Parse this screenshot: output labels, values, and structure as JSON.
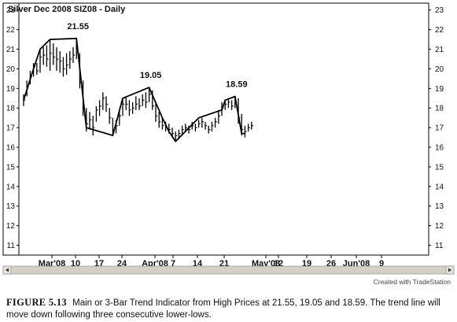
{
  "chart_data": {
    "type": "bar",
    "title": "Silver Dec 2008 SIZ08 - Daily",
    "ylim": [
      10,
      23
    ],
    "y_ticks": [
      11,
      12,
      13,
      14,
      15,
      16,
      17,
      18,
      19,
      20,
      21,
      22,
      23
    ],
    "x_tick_labels": [
      "Mar'08",
      "10",
      "17",
      "24",
      "Apr'08",
      "7",
      "14",
      "21",
      "May'08",
      "12",
      "19",
      "26",
      "Jun'08",
      "9"
    ],
    "grid": false,
    "ohlc": [
      {
        "high": 18.7,
        "low": 18.1,
        "close": 18.4
      },
      {
        "high": 19.4,
        "low": 18.6,
        "close": 19.1
      },
      {
        "high": 19.9,
        "low": 19.2,
        "close": 19.6
      },
      {
        "high": 20.3,
        "low": 19.6,
        "close": 20.1
      },
      {
        "high": 20.3,
        "low": 19.7,
        "close": 19.9
      },
      {
        "high": 21.0,
        "low": 19.8,
        "close": 20.6
      },
      {
        "high": 21.1,
        "low": 20.2,
        "close": 20.7
      },
      {
        "high": 21.2,
        "low": 20.1,
        "close": 20.5
      },
      {
        "high": 21.5,
        "low": 19.9,
        "close": 20.8
      },
      {
        "high": 21.3,
        "low": 20.2,
        "close": 20.6
      },
      {
        "high": 21.1,
        "low": 19.9,
        "close": 20.5
      },
      {
        "high": 20.9,
        "low": 19.8,
        "close": 20.4
      },
      {
        "high": 20.6,
        "low": 19.6,
        "close": 20.0
      },
      {
        "high": 20.8,
        "low": 19.7,
        "close": 20.2
      },
      {
        "high": 20.9,
        "low": 20.0,
        "close": 20.5
      },
      {
        "high": 21.1,
        "low": 20.3,
        "close": 20.7
      },
      {
        "high": 21.55,
        "low": 20.5,
        "close": 20.8
      },
      {
        "high": 20.8,
        "low": 19.0,
        "close": 19.3
      },
      {
        "high": 19.4,
        "low": 17.6,
        "close": 18.1
      },
      {
        "high": 18.0,
        "low": 16.8,
        "close": 17.2
      },
      {
        "high": 17.8,
        "low": 16.9,
        "close": 17.4
      },
      {
        "high": 17.6,
        "low": 16.6,
        "close": 17.0
      },
      {
        "high": 18.1,
        "low": 17.3,
        "close": 17.9
      },
      {
        "high": 18.4,
        "low": 17.6,
        "close": 18.1
      },
      {
        "high": 18.8,
        "low": 17.9,
        "close": 18.5
      },
      {
        "high": 18.6,
        "low": 17.8,
        "close": 18.2
      },
      {
        "high": 18.0,
        "low": 17.2,
        "close": 17.5
      },
      {
        "high": 17.5,
        "low": 16.6,
        "close": 16.9
      },
      {
        "high": 17.4,
        "low": 16.7,
        "close": 17.1
      },
      {
        "high": 17.9,
        "low": 17.1,
        "close": 17.6
      },
      {
        "high": 18.5,
        "low": 17.6,
        "close": 18.2
      },
      {
        "high": 18.6,
        "low": 17.9,
        "close": 18.2
      },
      {
        "high": 18.4,
        "low": 17.6,
        "close": 17.9
      },
      {
        "high": 18.3,
        "low": 17.7,
        "close": 18.0
      },
      {
        "high": 18.6,
        "low": 17.9,
        "close": 18.2
      },
      {
        "high": 18.5,
        "low": 17.9,
        "close": 18.1
      },
      {
        "high": 18.7,
        "low": 18.1,
        "close": 18.4
      },
      {
        "high": 18.8,
        "low": 18.0,
        "close": 18.3
      },
      {
        "high": 19.05,
        "low": 18.3,
        "close": 18.7
      },
      {
        "high": 18.9,
        "low": 17.9,
        "close": 18.1
      },
      {
        "high": 18.3,
        "low": 17.3,
        "close": 17.6
      },
      {
        "high": 17.8,
        "low": 17.0,
        "close": 17.3
      },
      {
        "high": 17.5,
        "low": 16.9,
        "close": 17.1
      },
      {
        "high": 17.3,
        "low": 16.8,
        "close": 17.0
      },
      {
        "high": 17.2,
        "low": 16.7,
        "close": 16.9
      },
      {
        "high": 17.0,
        "low": 16.5,
        "close": 16.7
      },
      {
        "high": 16.8,
        "low": 16.3,
        "close": 16.6
      },
      {
        "high": 16.9,
        "low": 16.4,
        "close": 16.7
      },
      {
        "high": 17.1,
        "low": 16.6,
        "close": 16.9
      },
      {
        "high": 17.2,
        "low": 16.8,
        "close": 17.0
      },
      {
        "high": 17.1,
        "low": 16.7,
        "close": 16.9
      },
      {
        "high": 17.3,
        "low": 16.9,
        "close": 17.1
      },
      {
        "high": 17.2,
        "low": 16.8,
        "close": 17.0
      },
      {
        "high": 17.4,
        "low": 17.0,
        "close": 17.2
      },
      {
        "high": 17.5,
        "low": 17.0,
        "close": 17.3
      },
      {
        "high": 17.3,
        "low": 16.9,
        "close": 17.1
      },
      {
        "high": 17.1,
        "low": 16.7,
        "close": 16.9
      },
      {
        "high": 17.3,
        "low": 16.8,
        "close": 17.1
      },
      {
        "high": 17.5,
        "low": 17.0,
        "close": 17.3
      },
      {
        "high": 17.9,
        "low": 17.2,
        "close": 17.6
      },
      {
        "high": 18.3,
        "low": 17.6,
        "close": 18.0
      },
      {
        "high": 18.4,
        "low": 17.9,
        "close": 18.2
      },
      {
        "high": 18.5,
        "low": 18.0,
        "close": 18.3
      },
      {
        "high": 18.4,
        "low": 17.9,
        "close": 18.1
      },
      {
        "high": 18.59,
        "low": 18.0,
        "close": 18.3
      },
      {
        "high": 18.5,
        "low": 17.2,
        "close": 17.5
      },
      {
        "high": 17.7,
        "low": 16.6,
        "close": 16.9
      },
      {
        "high": 17.1,
        "low": 16.5,
        "close": 16.8
      },
      {
        "high": 17.2,
        "low": 16.8,
        "close": 17.0
      },
      {
        "high": 17.3,
        "low": 16.9,
        "close": 17.1
      }
    ],
    "trend_line": [
      {
        "bar": 0,
        "value": 18.4
      },
      {
        "bar": 3,
        "value": 20.0
      },
      {
        "bar": 5,
        "value": 21.0
      },
      {
        "bar": 8,
        "value": 21.5
      },
      {
        "bar": 16,
        "value": 21.55
      },
      {
        "bar": 19,
        "value": 17.0
      },
      {
        "bar": 27,
        "value": 16.6
      },
      {
        "bar": 30,
        "value": 18.5
      },
      {
        "bar": 38,
        "value": 19.05
      },
      {
        "bar": 42,
        "value": 17.5
      },
      {
        "bar": 44,
        "value": 16.8
      },
      {
        "bar": 46,
        "value": 16.3
      },
      {
        "bar": 53,
        "value": 17.5
      },
      {
        "bar": 60,
        "value": 17.9
      },
      {
        "bar": 61,
        "value": 18.4
      },
      {
        "bar": 64,
        "value": 18.59
      },
      {
        "bar": 66,
        "value": 16.7
      },
      {
        "bar": 67,
        "value": 16.7
      }
    ],
    "annotations": [
      {
        "text": "21.55",
        "bar": 16,
        "value": 21.55
      },
      {
        "text": "19.05",
        "bar": 38,
        "value": 19.05
      },
      {
        "text": "18.59",
        "bar": 64,
        "value": 18.59
      }
    ]
  },
  "credit": "Created with TradeStation",
  "caption": {
    "label": "FIGURE 5.13",
    "text": "Main or 3-Bar Trend Indicator from High Prices at 21.55, 19.05 and 18.59. The trend line will move down following three consecutive lower-lows."
  },
  "colors": {
    "bar": "#000000",
    "trend_line": "#000000",
    "frame": "#000000",
    "background": "#ffffff",
    "scrollbar": "#d4d0c8"
  },
  "icons": [
    "scroll-left-arrow-icon",
    "scroll-right-arrow-icon"
  ]
}
